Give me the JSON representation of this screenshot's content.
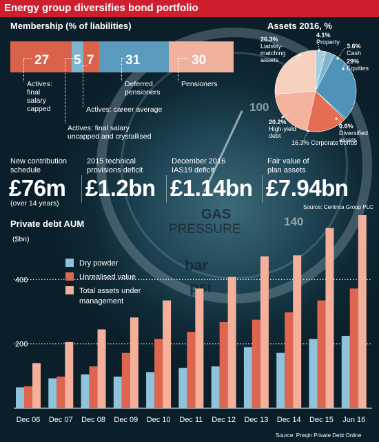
{
  "title": "Energy group diversifies bond portfolio",
  "membership": {
    "title": "Membership (% of liabilities)",
    "segments": [
      {
        "value": 27,
        "label": "Actives: final salary capped",
        "color": "#d9634a"
      },
      {
        "value": 5,
        "label": "Actives: final salary uncapped and crystallised",
        "color": "#7fb4cc"
      },
      {
        "value": 7,
        "label": "Actives: career average",
        "color": "#d9634a"
      },
      {
        "value": 31,
        "label": "Deferred pensioners",
        "color": "#5a9bbd"
      },
      {
        "value": 30,
        "label": "Pensioners",
        "color": "#f0b29c"
      }
    ],
    "labels": {
      "capped": [
        "Actives:",
        "final",
        "salary",
        "capped"
      ],
      "uncapped": [
        "Actives: final salary",
        "uncapped and crystallised"
      ],
      "career": "Actives: career average",
      "deferred": [
        "Deferred",
        "pensioners"
      ],
      "pensioners": "Pensioners"
    }
  },
  "assets": {
    "title": "Assets 2016, %",
    "slices": [
      {
        "value": 4.1,
        "label": "Property",
        "color": "#a9cde0"
      },
      {
        "value": 3.6,
        "label": "Cash",
        "color": "#7fb4cc"
      },
      {
        "value": 29,
        "label": "Equities",
        "color": "#4f93b8"
      },
      {
        "value": 0.6,
        "label": "Diversified assets",
        "color": "#2e6f90"
      },
      {
        "value": 16.3,
        "label": "Corporate bonds",
        "color": "#e46e52"
      },
      {
        "value": 20.2,
        "label": "High-yield debt",
        "color": "#f3b39d"
      },
      {
        "value": 26.3,
        "label": "Liability-matching assets",
        "color": "#f8d0c0"
      }
    ],
    "labels": {
      "lm_pct": "26.3%",
      "lm_lines": [
        "Liability-",
        "matching",
        "assets"
      ],
      "prop_pct": "4.1%",
      "prop": "Property",
      "cash_pct": "3.6%",
      "cash": "Cash",
      "eq_pct": "29%",
      "eq": "Equities",
      "div_pct": "0.6%",
      "div_lines": [
        "Diversified",
        "assets"
      ],
      "cb": "16.3% Corporate bonds",
      "hy_pct": "20.2%",
      "hy_lines": [
        "High-yield",
        "debt"
      ]
    }
  },
  "stats": [
    {
      "label": [
        "New contribution",
        "schedule"
      ],
      "value": "£76m",
      "note": "(over 14 years)"
    },
    {
      "label": [
        "2015 technical",
        "provisions deficit"
      ],
      "value": "£1.2bn"
    },
    {
      "label": [
        "December 2016",
        "IAS19 deficit"
      ],
      "value": "£1.14bn"
    },
    {
      "label": [
        "Fair value of",
        "plan assets"
      ],
      "value": "£7.94bn"
    }
  ],
  "source_centrica": "Source: Centrica Group PLC",
  "source_preqin": "Source: Preqin Private Debt Online",
  "gauge": {
    "gas": "GAS",
    "pressure": "PRESSURE",
    "bar": "bar",
    "psi": "psi",
    "n100": "100",
    "n140": "140"
  },
  "chart_data": {
    "type": "bar",
    "title": "Private debt AUM",
    "ylabel": "($bn)",
    "ylim": [
      0,
      600
    ],
    "yticks": [
      200,
      400
    ],
    "categories": [
      "Dec 06",
      "Dec 07",
      "Dec 08",
      "Dec 09",
      "Dec 10",
      "Dec 11",
      "Dec 12",
      "Dec 13",
      "Dec 14",
      "Dec 15",
      "Jun 16"
    ],
    "series": [
      {
        "name": "Dry powder",
        "color": "#8fc3dc",
        "values": [
          65,
          93,
          105,
          98,
          112,
          125,
          130,
          190,
          172,
          215,
          225
        ]
      },
      {
        "name": "Unrealised value",
        "color": "#de6650",
        "values": [
          68,
          98,
          130,
          172,
          215,
          237,
          268,
          275,
          298,
          335,
          372
        ]
      },
      {
        "name": "Total assets under management",
        "color": "#f4b09a",
        "values": [
          140,
          206,
          245,
          282,
          335,
          372,
          408,
          472,
          475,
          560,
          600
        ]
      }
    ],
    "legend": [
      "Dry powder",
      "Unrealised value",
      "Total assets under",
      "management"
    ]
  }
}
